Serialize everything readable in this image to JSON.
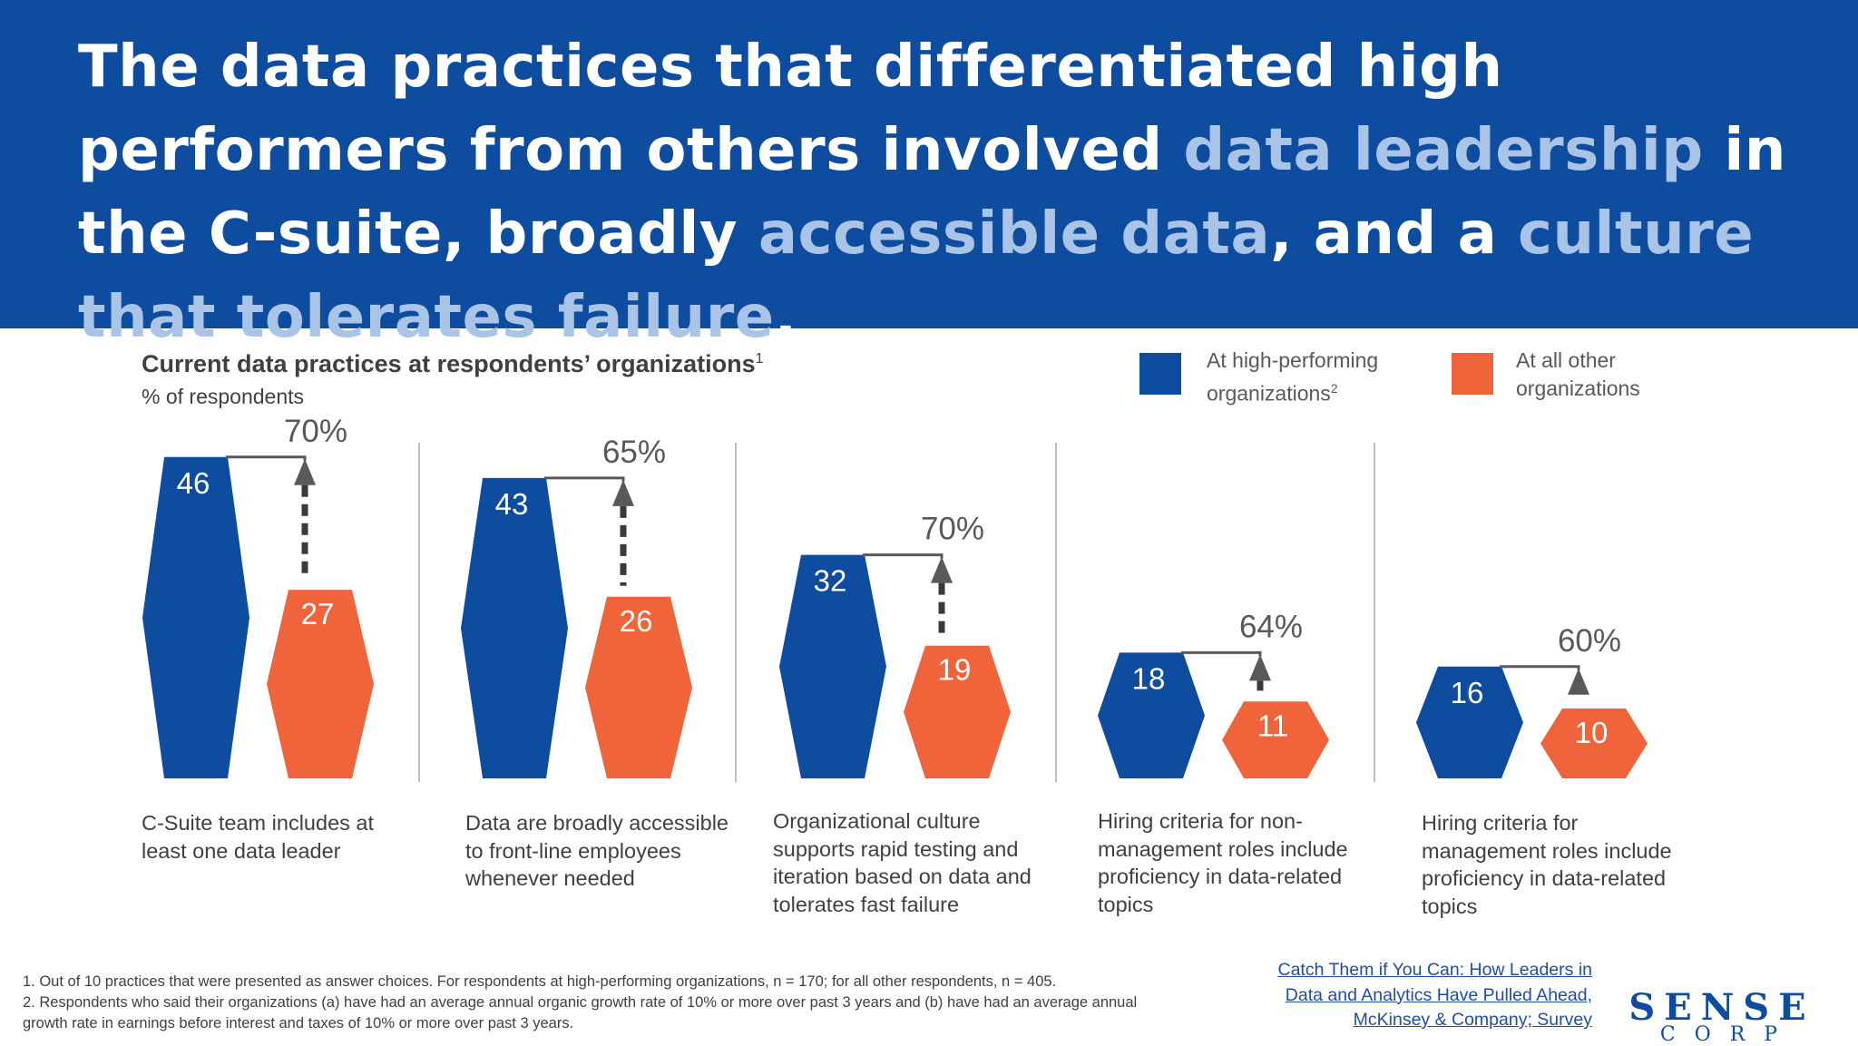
{
  "headline": {
    "part1": "The data practices that differentiated high performers from others involved ",
    "hl1": "data leadership",
    "part2": " in the C-suite, broadly ",
    "hl2": "accessible data",
    "part3": ", and a ",
    "hl3": "culture that tolerates failure",
    "part4": "."
  },
  "legend": {
    "high": "At high-performing organizations",
    "high_sup": "2",
    "other": "At all other organizations"
  },
  "colors": {
    "header_bg": "#0D4C9E",
    "high": "#0D4C9E",
    "other": "#F0643C",
    "highlight": "#A9C4E6",
    "arrow": "#595959"
  },
  "chart_data": {
    "type": "bar",
    "title": "Current data practices at respondents’ organizations",
    "title_sup": "1",
    "subtitle": "% of respondents",
    "categories": [
      "C-Suite team includes at least one data leader",
      "Data are broadly accessible to front-line employees whenever needed",
      "Organizational culture supports rapid testing and iteration based on data and tolerates fast failure",
      "Hiring criteria for non-management roles include proficiency in data-related topics",
      "Hiring criteria for management roles include proficiency in data-related topics"
    ],
    "series": [
      {
        "name": "At high-performing organizations",
        "values": [
          46,
          43,
          32,
          18,
          16
        ]
      },
      {
        "name": "At all other organizations",
        "values": [
          27,
          26,
          19,
          11,
          10
        ]
      }
    ],
    "differences": [
      "70%",
      "65%",
      "70%",
      "64%",
      "60%"
    ],
    "legend_position": "top-right",
    "grid": false
  },
  "footnotes": {
    "line1": "1. Out of 10 practices that were presented as answer choices. For respondents at high-performing organizations, n = 170; for all other respondents, n = 405.",
    "line2": "2. Respondents who said their organizations (a) have had an average annual organic growth rate of 10% or more over past 3 years and (b) have had an average annual growth rate in earnings before interest and taxes of 10% or more over past 3 years."
  },
  "source": {
    "line1": "Catch Them if You Can: How Leaders in",
    "line2": "Data and Analytics Have Pulled Ahead,",
    "line3": "McKinsey & Company; Survey"
  },
  "logo": {
    "top": "SENSE",
    "bottom": "CORP"
  }
}
